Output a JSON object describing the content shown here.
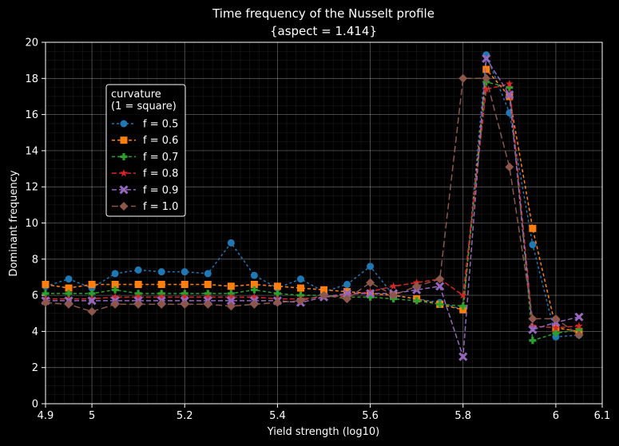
{
  "chart_data": {
    "type": "line",
    "title": "Time frequency of the Nusselt profile",
    "subtitle": "{aspect = 1.414}",
    "xlabel": "Yield strength (log10)",
    "ylabel": "Dominant frequency",
    "xlim": [
      4.9,
      6.1
    ],
    "ylim": [
      0,
      20
    ],
    "x_ticks": [
      4.9,
      5,
      5.2,
      5.4,
      5.6,
      5.8,
      6,
      6.1
    ],
    "x_tick_labels": [
      "4.9",
      "5",
      "5.2",
      "5.4",
      "5.6",
      "5.8",
      "6",
      "6.1"
    ],
    "y_ticks": [
      0,
      2,
      4,
      6,
      8,
      10,
      12,
      14,
      16,
      18,
      20
    ],
    "y_tick_labels": [
      "0",
      "2",
      "4",
      "6",
      "8",
      "10",
      "12",
      "14",
      "16",
      "18",
      "20"
    ],
    "grid": true,
    "legend": {
      "title_line1": "curvature",
      "title_line2": "(1 = square)",
      "placement": "upper-left"
    },
    "x": [
      4.9,
      4.95,
      5.0,
      5.05,
      5.1,
      5.15,
      5.2,
      5.25,
      5.3,
      5.35,
      5.4,
      5.45,
      5.5,
      5.55,
      5.6,
      5.65,
      5.7,
      5.75,
      5.8,
      5.85,
      5.9,
      5.95,
      6.0,
      6.05
    ],
    "series": [
      {
        "name": "f = 0.5",
        "color": "#1f77b4",
        "marker": "circle",
        "dash": "3,3",
        "values": [
          6.5,
          6.9,
          6.4,
          7.2,
          7.4,
          7.3,
          7.3,
          7.2,
          8.9,
          7.1,
          6.4,
          6.9,
          6.2,
          6.6,
          7.6,
          6.0,
          5.8,
          5.6,
          5.2,
          19.3,
          16.1,
          8.8,
          3.7,
          3.8
        ]
      },
      {
        "name": "f = 0.6",
        "color": "#ff7f0e",
        "marker": "square",
        "dash": "4,3",
        "values": [
          6.6,
          6.4,
          6.6,
          6.6,
          6.6,
          6.6,
          6.6,
          6.6,
          6.5,
          6.6,
          6.5,
          6.4,
          6.3,
          6.2,
          6.1,
          6.0,
          5.8,
          5.5,
          5.2,
          18.5,
          17.0,
          9.7,
          4.2,
          4.0
        ]
      },
      {
        "name": "f = 0.7",
        "color": "#2ca02c",
        "marker": "plus",
        "dash": "4,3",
        "values": [
          6.1,
          6.1,
          6.1,
          6.3,
          6.1,
          6.1,
          6.1,
          6.1,
          6.1,
          6.3,
          6.1,
          6.0,
          6.0,
          5.9,
          5.9,
          5.8,
          5.7,
          5.5,
          5.4,
          17.8,
          17.5,
          3.5,
          3.9,
          4.1
        ]
      },
      {
        "name": "f = 0.8",
        "color": "#d62728",
        "marker": "star",
        "dash": "6,3",
        "values": [
          5.8,
          5.8,
          5.8,
          5.9,
          5.9,
          5.9,
          5.9,
          5.9,
          5.9,
          5.9,
          5.8,
          5.8,
          5.9,
          6.0,
          6.2,
          6.5,
          6.7,
          6.9,
          6.0,
          17.4,
          17.7,
          4.3,
          4.2,
          4.3
        ]
      },
      {
        "name": "f = 0.9",
        "color": "#9467bd",
        "marker": "x",
        "dash": "6,3",
        "values": [
          5.7,
          5.7,
          5.7,
          5.7,
          5.7,
          5.7,
          5.7,
          5.7,
          5.7,
          5.7,
          5.7,
          5.6,
          5.9,
          6.1,
          6.1,
          6.1,
          6.3,
          6.5,
          2.6,
          19.1,
          17.1,
          4.1,
          4.5,
          4.8
        ]
      },
      {
        "name": "f = 1.0",
        "color": "#8c564b",
        "marker": "diamond",
        "dash": "8,4",
        "values": [
          5.6,
          5.5,
          5.1,
          5.5,
          5.5,
          5.5,
          5.5,
          5.5,
          5.4,
          5.5,
          5.6,
          5.7,
          6.0,
          5.8,
          6.7,
          6.0,
          6.5,
          6.9,
          18.0,
          18.0,
          13.1,
          4.7,
          4.7,
          3.8
        ]
      }
    ]
  }
}
